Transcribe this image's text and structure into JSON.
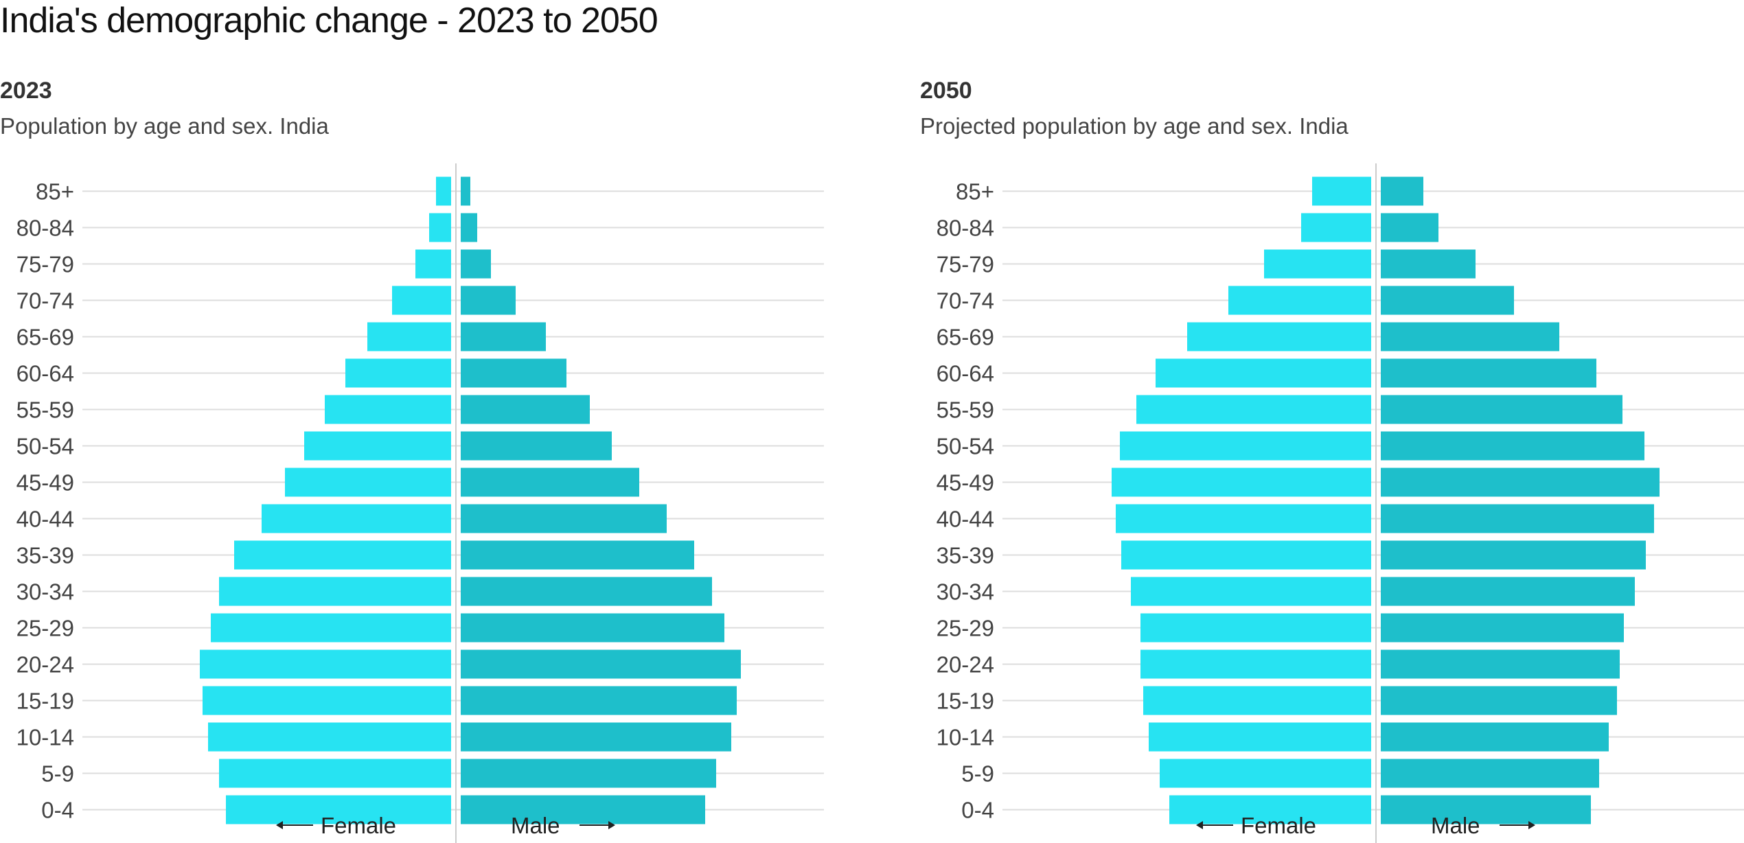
{
  "title": "India's demographic change - 2023 to 2050",
  "colors": {
    "female": "#27e3f2",
    "male": "#1ebfcb"
  },
  "chart_data": [
    {
      "type": "bar",
      "orientation": "horizontal-population-pyramid",
      "title": "2023",
      "subtitle": "Population by age and sex. India",
      "categories": [
        "85+",
        "80-84",
        "75-79",
        "70-74",
        "65-69",
        "60-64",
        "55-59",
        "50-54",
        "45-49",
        "40-44",
        "35-39",
        "30-34",
        "25-29",
        "20-24",
        "15-19",
        "10-14",
        "5-9",
        "0-4"
      ],
      "series": [
        {
          "name": "Female",
          "values": [
            1.1,
            1.6,
            2.6,
            4.3,
            6.1,
            7.7,
            9.2,
            10.7,
            12.1,
            13.8,
            15.8,
            16.9,
            17.5,
            18.3,
            18.1,
            17.7,
            16.9,
            16.4
          ]
        },
        {
          "name": "Male",
          "values": [
            0.7,
            1.2,
            2.2,
            4.0,
            6.2,
            7.7,
            9.4,
            11.0,
            13.0,
            15.0,
            17.0,
            18.3,
            19.2,
            20.4,
            20.1,
            19.7,
            18.6,
            17.8
          ]
        }
      ],
      "legend": [
        "Female",
        "Male"
      ],
      "xlim": [
        -24,
        24
      ],
      "grid": true
    },
    {
      "type": "bar",
      "orientation": "horizontal-population-pyramid",
      "title": "2050",
      "subtitle": "Projected population by age and sex. India",
      "categories": [
        "85+",
        "80-84",
        "75-79",
        "70-74",
        "65-69",
        "60-64",
        "55-59",
        "50-54",
        "45-49",
        "40-44",
        "35-39",
        "30-34",
        "25-29",
        "20-24",
        "15-19",
        "10-14",
        "5-9",
        "0-4"
      ],
      "series": [
        {
          "name": "Female",
          "values": [
            4.3,
            5.1,
            7.8,
            10.4,
            13.4,
            15.7,
            17.1,
            18.3,
            18.9,
            18.6,
            18.2,
            17.5,
            16.8,
            16.8,
            16.6,
            16.2,
            15.4,
            14.7
          ]
        },
        {
          "name": "Male",
          "values": [
            3.1,
            4.2,
            6.9,
            9.7,
            13.0,
            15.7,
            17.6,
            19.2,
            20.3,
            19.9,
            19.3,
            18.5,
            17.7,
            17.4,
            17.2,
            16.6,
            15.9,
            15.3
          ]
        }
      ],
      "legend": [
        "Female",
        "Male"
      ],
      "xlim": [
        -24,
        24
      ],
      "grid": true
    }
  ]
}
